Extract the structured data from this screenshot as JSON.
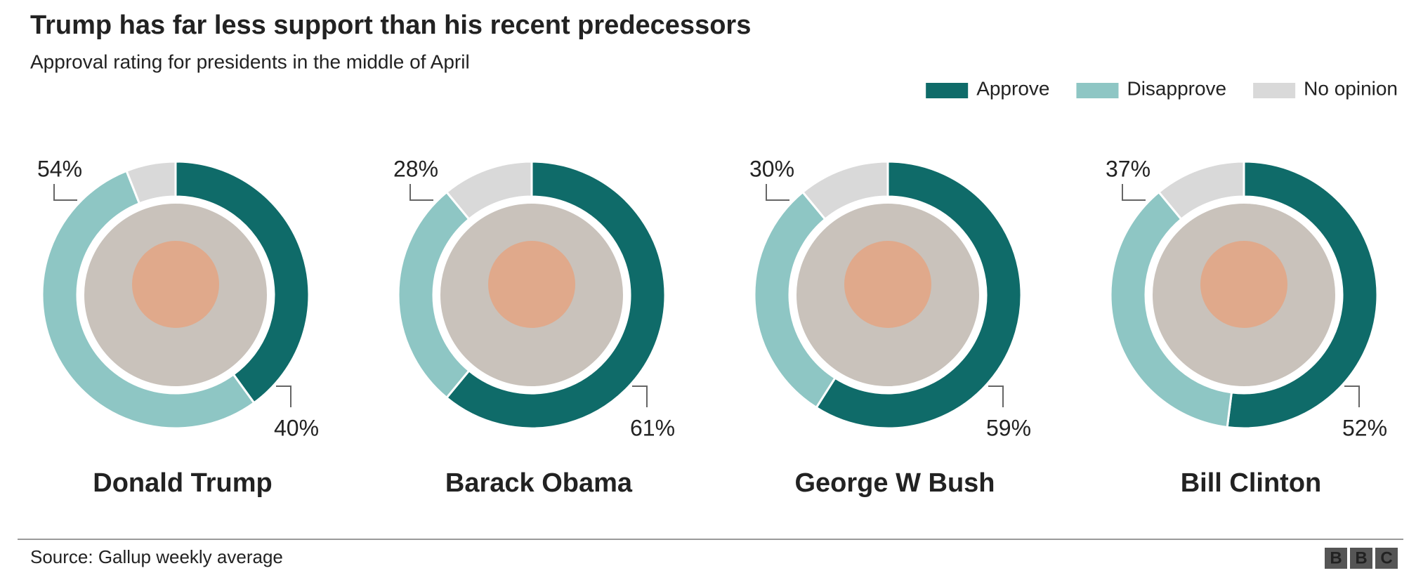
{
  "chart_data": {
    "type": "donut",
    "title": "Trump has far less support than his recent predecessors",
    "subtitle": "Approval rating for presidents in the middle of April",
    "categories": [
      "Donald Trump",
      "Barack Obama",
      "George W Bush",
      "Bill Clinton"
    ],
    "series": [
      {
        "name": "Approve",
        "color": "#0f6b69",
        "values": [
          40,
          61,
          59,
          52
        ],
        "value_labels": [
          "40%",
          "61%",
          "59%",
          "52%"
        ]
      },
      {
        "name": "Disapprove",
        "color": "#8ec6c4",
        "values": [
          54,
          28,
          30,
          37
        ],
        "value_labels": [
          "54%",
          "28%",
          "30%",
          "37%"
        ]
      },
      {
        "name": "No opinion",
        "color": "#d9d9d9",
        "values": [
          6,
          11,
          11,
          11
        ]
      }
    ],
    "source": "Source: Gallup weekly average",
    "logo": [
      "B",
      "B",
      "C"
    ]
  }
}
